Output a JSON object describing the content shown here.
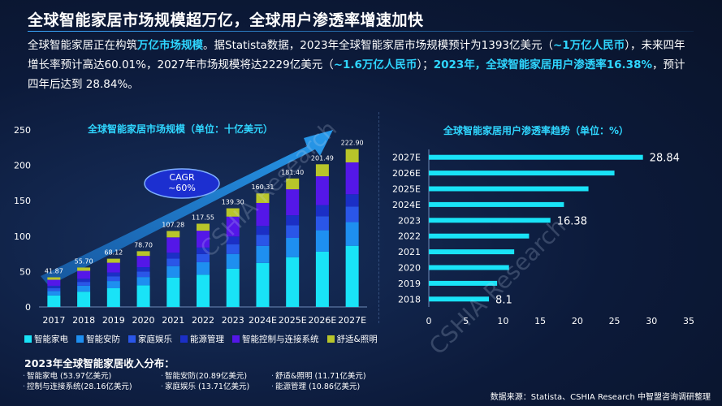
{
  "title": "全球智能家居市场规模超万亿，全球用户渗透率增速加快",
  "intro": {
    "p1": "全球智能家居正在构筑",
    "h1": "万亿市场规模",
    "p2": "。据Statista数据，2023年全球智能家居市场规模预计为1393亿美元（",
    "h2": "~1万亿人民币",
    "p3": "），未来四年增长率预计高达60.01%，2027年市场规模将达2229亿美元（",
    "h3": "~1.6万亿人民币",
    "p4": "）；",
    "h4": "2023年，全球智能家居用户渗透率16.38%",
    "p5": "，预计四年后达到 28.84%。"
  },
  "cagr": {
    "label": "CAGR",
    "value": "~60%"
  },
  "watermark": "CSHIA Research",
  "legend_label": "智能家电",
  "colors": {
    "c1": "#19e3f7",
    "c2": "#1e8ff0",
    "c3": "#2a56e8",
    "c4": "#1b2fc6",
    "c5": "#5417e8",
    "c6": "#b8c52a"
  },
  "chart_data": [
    {
      "type": "bar",
      "stacked": true,
      "title": "全球智能家居市场规模（单位：十亿美元）",
      "categories": [
        "2017",
        "2018",
        "2019",
        "2020",
        "2021",
        "2022",
        "2023",
        "2024E",
        "2025E",
        "2026E",
        "2027E"
      ],
      "totals": [
        41.87,
        55.7,
        68.12,
        78.7,
        107.28,
        117.55,
        139.3,
        160.31,
        181.4,
        201.49,
        222.9
      ],
      "total_labels": [
        "41.87",
        "55.70",
        "68.12",
        "78.70",
        "107.28",
        "117.55",
        "139.30",
        "160.31",
        "181.40",
        "201.49",
        "222.90"
      ],
      "ylim": [
        0,
        250
      ],
      "yticks": [
        0,
        50,
        100,
        150,
        200,
        250
      ],
      "series": [
        {
          "name": "智能家电",
          "share": 0.3874,
          "color": "#19e3f7"
        },
        {
          "name": "智能安防",
          "share": 0.15,
          "color": "#1e8ff0"
        },
        {
          "name": "家庭娱乐",
          "share": 0.0984,
          "color": "#2a56e8"
        },
        {
          "name": "能源管理",
          "share": 0.078,
          "color": "#1b2fc6"
        },
        {
          "name": "智能控制与连接系统",
          "share": 0.2021,
          "color": "#5417e8"
        },
        {
          "name": "舒适&照明",
          "share": 0.0841,
          "color": "#b8c52a"
        }
      ]
    },
    {
      "type": "bar",
      "orientation": "horizontal",
      "title": "全球智能家居用户渗透率趋势（单位：%）",
      "categories": [
        "2027E",
        "2026E",
        "2025E",
        "2024E",
        "2023",
        "2022",
        "2021",
        "2020",
        "2019",
        "2018"
      ],
      "values": [
        28.84,
        25.0,
        21.5,
        18.2,
        16.38,
        13.5,
        11.5,
        10.8,
        9.2,
        8.1
      ],
      "value_labels": {
        "2027E": "28.84",
        "2023": "16.38",
        "2018": "8.1"
      },
      "xlim": [
        0,
        35
      ],
      "xticks": [
        0,
        5,
        10,
        15,
        20,
        25,
        30,
        35
      ]
    }
  ],
  "distribution": {
    "title": "2023年全球智能家居收入分布：",
    "items": [
      "智能家电 (53.97亿美元)",
      "智能安防(20.89亿美元)",
      "舒适&照明 (11.71亿美元)",
      "控制与连接系统(28.16亿美元)",
      "家庭娱乐 (13.71亿美元)",
      "能源管理 (10.86亿美元)"
    ]
  },
  "source": "数据来源：Statista、CSHIA Research 中智盟咨询调研整理"
}
